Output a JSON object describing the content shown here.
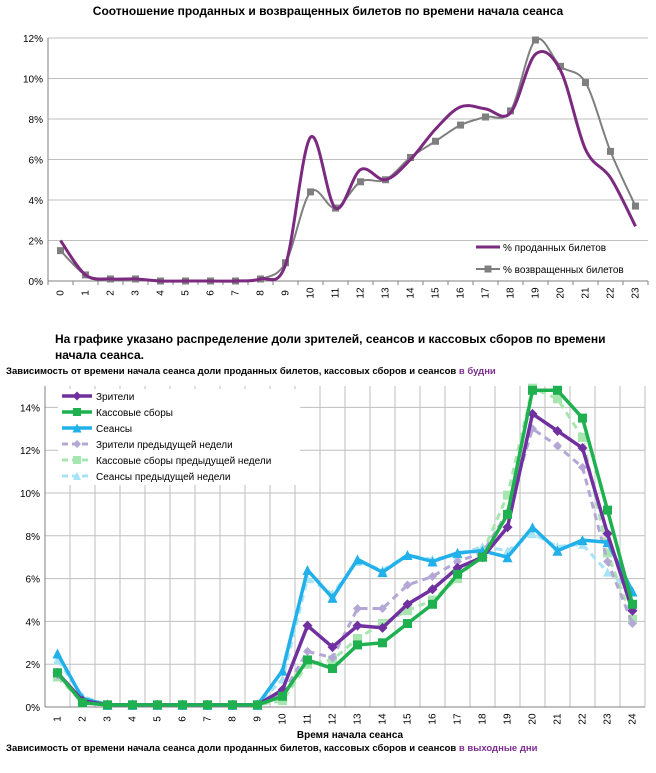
{
  "colors": {
    "sold": "#7b2a7f",
    "returned": "#7f7f7f",
    "viewers": "#7030a0",
    "revenue": "#1fb050",
    "sessions": "#21b0e9",
    "viewers_prev": "#b4a7d6",
    "revenue_prev": "#a8e6b0",
    "sessions_prev": "#a6e3f5",
    "accent_text": "#7b2d8e"
  },
  "annotation": "На графике указано распределение доли зрителей, сеансов и кассовых сборов по времени начала сеанса.",
  "footer": {
    "text": "Зависимость от времени начала сеанса доли проданных билетов, кассовых сборов и сеансов",
    "accent": "в выходные дни"
  },
  "chart_data": [
    {
      "type": "line",
      "title": "Соотношение проданных и возвращенных билетов по времени начала сеанса",
      "categories": [
        "0",
        "1",
        "2",
        "3",
        "4",
        "5",
        "6",
        "7",
        "8",
        "9",
        "10",
        "11",
        "12",
        "13",
        "14",
        "15",
        "16",
        "17",
        "18",
        "19",
        "20",
        "21",
        "22",
        "23"
      ],
      "ylim": [
        0,
        12
      ],
      "yticks": [
        "0%",
        "2%",
        "4%",
        "6%",
        "8%",
        "10%",
        "12%"
      ],
      "grid": true,
      "legend_position": "bottom-right",
      "series": [
        {
          "name": "% проданных билетов",
          "values": [
            2.0,
            0.3,
            0.1,
            0.1,
            0.0,
            0.0,
            0.0,
            0.0,
            0.1,
            0.8,
            7.1,
            3.6,
            5.5,
            5.0,
            6.0,
            7.5,
            8.6,
            8.5,
            8.3,
            11.2,
            10.4,
            6.5,
            5.1,
            2.7
          ]
        },
        {
          "name": "% возвращенных билетов",
          "values": [
            1.5,
            0.3,
            0.1,
            0.1,
            0.0,
            0.0,
            0.0,
            0.0,
            0.1,
            0.9,
            4.4,
            3.6,
            4.9,
            5.0,
            6.1,
            6.9,
            7.7,
            8.1,
            8.4,
            11.9,
            10.6,
            9.8,
            6.4,
            3.7
          ]
        }
      ]
    },
    {
      "type": "line",
      "title": "Зависимость от времени начала сеанса доли проданных билетов, кассовых сборов и сеансов",
      "title_accent": "в будни",
      "xlabel": "Время начала сеанса",
      "categories": [
        "1",
        "2",
        "3",
        "4",
        "5",
        "6",
        "7",
        "8",
        "9",
        "10",
        "11",
        "12",
        "13",
        "14",
        "15",
        "16",
        "17",
        "18",
        "19",
        "20",
        "21",
        "22",
        "23",
        "24"
      ],
      "ylim": [
        0,
        15
      ],
      "yticks": [
        "0%",
        "2%",
        "4%",
        "6%",
        "8%",
        "10%",
        "12%",
        "14%"
      ],
      "grid": true,
      "legend_position": "top-left",
      "series": [
        {
          "name": "Зрители",
          "values": [
            1.6,
            0.3,
            0.1,
            0.1,
            0.1,
            0.1,
            0.1,
            0.1,
            0.1,
            0.8,
            3.8,
            2.8,
            3.8,
            3.7,
            4.8,
            5.5,
            6.5,
            7.0,
            8.4,
            13.7,
            12.9,
            12.1,
            8.1,
            4.5
          ]
        },
        {
          "name": "Кассовые сборы",
          "values": [
            1.6,
            0.2,
            0.1,
            0.1,
            0.1,
            0.1,
            0.1,
            0.1,
            0.1,
            0.5,
            2.2,
            1.8,
            2.9,
            3.0,
            3.9,
            4.8,
            6.2,
            7.0,
            9.0,
            14.8,
            14.8,
            13.5,
            9.2,
            4.8
          ]
        },
        {
          "name": "Сеансы",
          "values": [
            2.5,
            0.4,
            0.1,
            0.1,
            0.1,
            0.1,
            0.1,
            0.1,
            0.1,
            1.7,
            6.4,
            5.1,
            6.9,
            6.3,
            7.1,
            6.8,
            7.2,
            7.3,
            7.0,
            8.4,
            7.3,
            7.8,
            7.7,
            5.4
          ]
        },
        {
          "name": "Зрители предыдущей недели",
          "values": [
            1.5,
            0.3,
            0.1,
            0.1,
            0.1,
            0.1,
            0.1,
            0.1,
            0.1,
            0.6,
            2.6,
            2.3,
            4.6,
            4.6,
            5.7,
            6.1,
            6.8,
            7.2,
            9.1,
            13.0,
            12.2,
            11.2,
            6.8,
            3.9
          ]
        },
        {
          "name": "Кассовые сборы предыдущей недели",
          "values": [
            1.4,
            0.2,
            0.1,
            0.1,
            0.1,
            0.1,
            0.1,
            0.1,
            0.1,
            0.3,
            2.0,
            2.2,
            3.2,
            3.9,
            4.5,
            5.0,
            6.0,
            7.2,
            9.9,
            14.9,
            14.4,
            12.6,
            7.2,
            4.1
          ]
        },
        {
          "name": "Сеансы предыдущей недели",
          "values": [
            2.2,
            0.5,
            0.1,
            0.1,
            0.1,
            0.1,
            0.1,
            0.1,
            0.1,
            1.3,
            6.0,
            5.3,
            6.8,
            6.4,
            7.1,
            6.9,
            7.1,
            7.5,
            7.3,
            8.1,
            7.5,
            7.6,
            6.3,
            5.4
          ]
        }
      ]
    }
  ]
}
